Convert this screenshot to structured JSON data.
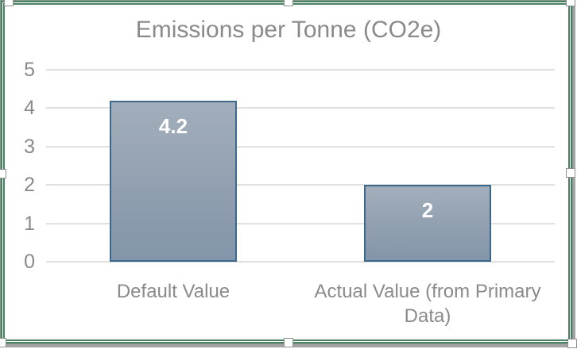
{
  "chart": {
    "selected": true,
    "selection_handles": [
      "top-left",
      "top-center",
      "top-right",
      "middle-left",
      "middle-right",
      "bottom-left",
      "bottom-center",
      "bottom-right"
    ],
    "colors": {
      "frame_green": "#4a8163",
      "frame_hairline": "#87998d",
      "shadow_gray": "#a2a2a2",
      "bar_fill_top": "#a2aebb",
      "bar_fill_mid": "#94a2b2",
      "bar_fill_bottom": "#8395a9",
      "bar_border": "#3b688c",
      "gridline": "#e0e0e0",
      "title_gray": "#8a8a8a",
      "text_gray": "#8a8a8a",
      "data_label_white": "#ffffff"
    }
  },
  "chart_data": {
    "type": "bar",
    "title": "Emissions per Tonne (CO2e)",
    "categories": [
      "Default Value",
      "Actual Value (from Primary Data)"
    ],
    "values": [
      4.2,
      2
    ],
    "data_labels": [
      "4.2",
      "2"
    ],
    "data_label_position": "inside-end",
    "yticks": [
      5,
      4,
      3,
      2,
      1,
      0
    ],
    "ylim": [
      0,
      5
    ],
    "xlabel": "",
    "ylabel": "",
    "grid": true,
    "legend": "none"
  }
}
